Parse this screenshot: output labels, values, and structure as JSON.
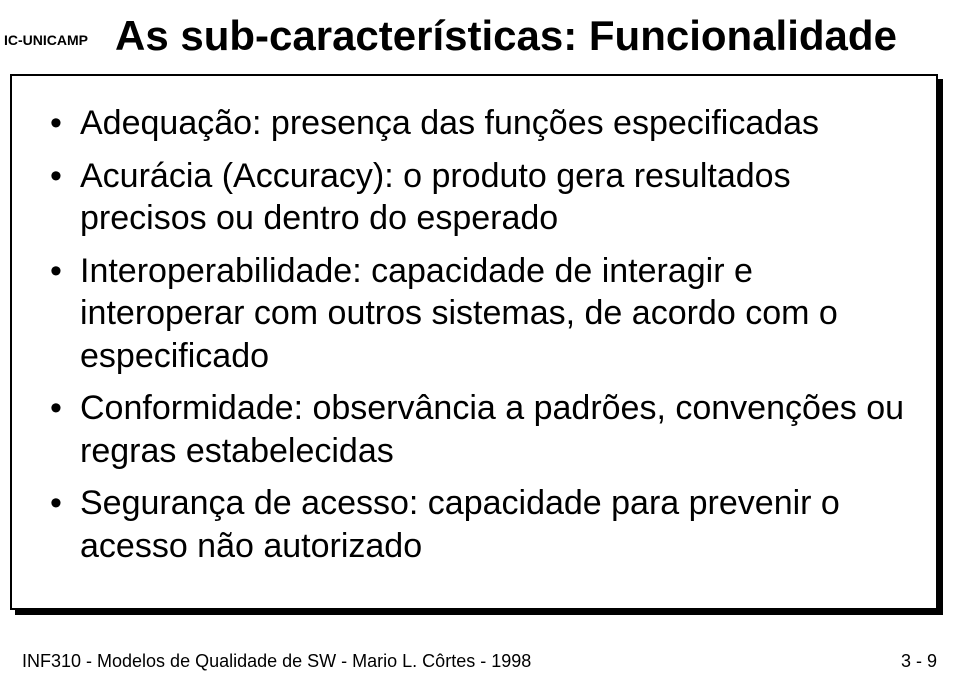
{
  "logo_label": "IC-UNICAMP",
  "title": "As sub-características: Funcionalidade",
  "bullets": [
    "Adequação: presença das funções especificadas",
    "Acurácia (Accuracy): o produto gera resultados precisos ou dentro do esperado",
    "Interoperabilidade: capacidade de interagir e interoperar com outros sistemas, de acordo com o especificado",
    "Conformidade: observância a padrões, convenções ou regras estabelecidas",
    "Segurança de acesso: capacidade para prevenir o acesso não autorizado"
  ],
  "footer": {
    "left": "INF310 - Modelos de Qualidade de SW - Mario L. Côrtes - 1998",
    "right": "3 - 9"
  },
  "colors": {
    "text": "#000000",
    "background": "#ffffff",
    "border": "#000000"
  }
}
